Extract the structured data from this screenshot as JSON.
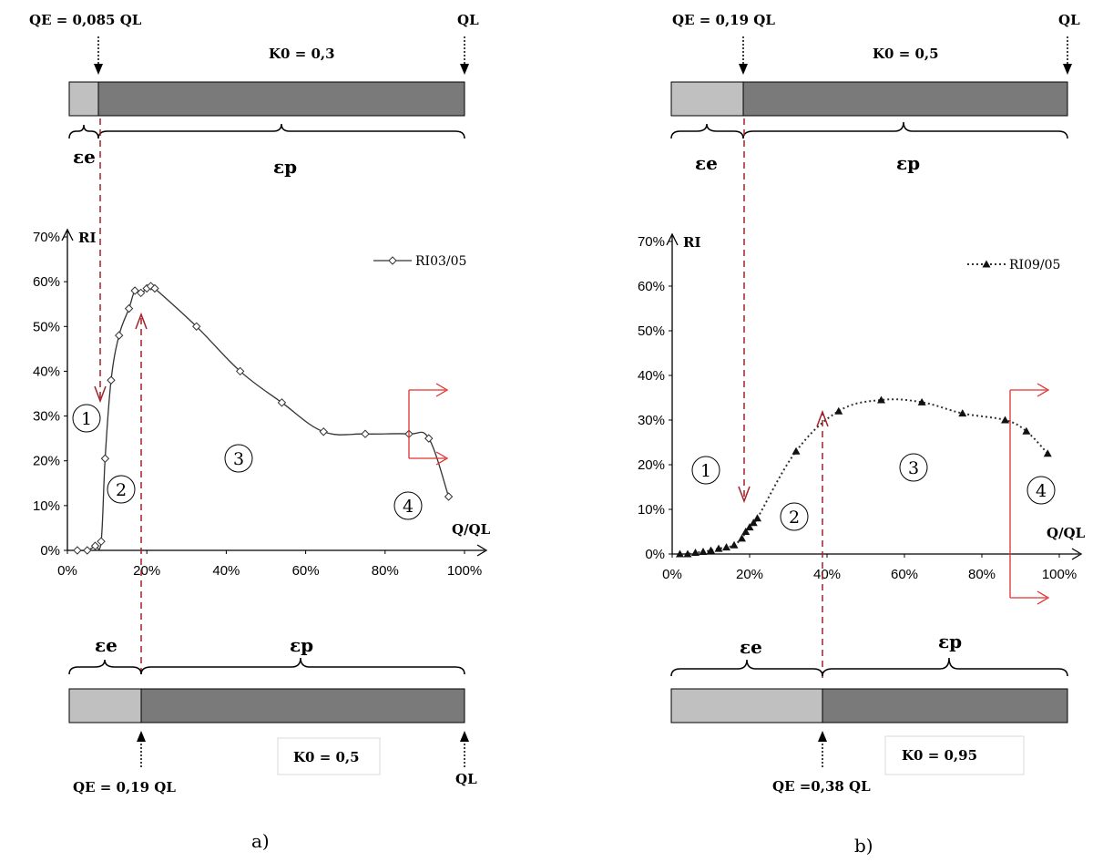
{
  "colors": {
    "light_bar": "#c0c0c0",
    "dark_bar": "#7a7a7a",
    "marker_arrow": "#a0202a",
    "red_arrow": "#e03030",
    "curve": "#333333"
  },
  "panel_a": {
    "caption": "a)",
    "top": {
      "qe_label": "QE = 0,085 QL",
      "ql_label": "QL",
      "k0_label": "K0 = 0,3",
      "qe_fraction": 0.085,
      "eps_e": "εe",
      "eps_p": "εp"
    },
    "bottom": {
      "qe_label": "QE = 0,19 QL",
      "ql_label": "QL",
      "k0_label": "K0 = 0,5",
      "qe_fraction": 0.19,
      "eps_e": "εe",
      "eps_p": "εp"
    },
    "zones": [
      "1",
      "2",
      "3",
      "4"
    ]
  },
  "panel_b": {
    "caption": "b)",
    "top": {
      "qe_label": "QE = 0,19 QL",
      "ql_label": "QL",
      "k0_label": "K0 = 0,5",
      "qe_fraction": 0.19,
      "eps_e": "εe",
      "eps_p": "εp"
    },
    "bottom": {
      "qe_label": "QE =0,38 QL",
      "ql_label": "",
      "k0_label": "K0 = 0,95",
      "qe_fraction": 0.38,
      "eps_e": "εe",
      "eps_p": "εp"
    },
    "zones": [
      "1",
      "2",
      "3",
      "4"
    ]
  },
  "chart_data": [
    {
      "type": "line",
      "ylabel": "RI",
      "xlabel": "Q/QL",
      "xlim": [
        0,
        100
      ],
      "ylim": [
        0,
        70
      ],
      "x_ticks": [
        "0%",
        "20%",
        "40%",
        "60%",
        "80%",
        "100%"
      ],
      "y_ticks": [
        "0%",
        "10%",
        "20%",
        "30%",
        "40%",
        "50%",
        "60%",
        "70%"
      ],
      "legend_position": "top-right",
      "series": [
        {
          "name": "RI03/05",
          "marker": "open-diamond",
          "line": "solid",
          "x": [
            2.5,
            5,
            7,
            8.5,
            9.5,
            11,
            13,
            15.5,
            17,
            18.5,
            20,
            21,
            22,
            32.5,
            43.5,
            54,
            64.5,
            75,
            86,
            91,
            96
          ],
          "y": [
            0,
            0,
            1,
            2,
            20.5,
            38,
            48,
            54,
            58,
            57.5,
            58.5,
            59,
            58.5,
            50,
            40,
            33,
            26.5,
            26,
            26,
            25,
            12
          ]
        }
      ]
    },
    {
      "type": "line",
      "ylabel": "RI",
      "xlabel": "Q/QL",
      "xlim": [
        0,
        100
      ],
      "ylim": [
        0,
        70
      ],
      "x_ticks": [
        "0%",
        "20%",
        "40%",
        "60%",
        "80%",
        "100%"
      ],
      "y_ticks": [
        "0%",
        "10%",
        "20%",
        "30%",
        "40%",
        "50%",
        "60%",
        "70%"
      ],
      "legend_position": "top-right",
      "series": [
        {
          "name": "RI09/05",
          "marker": "filled-triangle",
          "line": "dotted",
          "x": [
            2,
            4,
            6,
            8,
            10,
            12,
            14,
            16,
            18,
            19,
            20,
            21,
            22,
            32,
            43,
            54,
            64.5,
            75,
            86,
            91.5,
            97
          ],
          "y": [
            0,
            0,
            0.3,
            0.5,
            0.8,
            1.2,
            1.5,
            2,
            3.5,
            5,
            6,
            7,
            8,
            23,
            32,
            34.5,
            34,
            31.5,
            30,
            27.5,
            22.5
          ]
        }
      ]
    }
  ]
}
